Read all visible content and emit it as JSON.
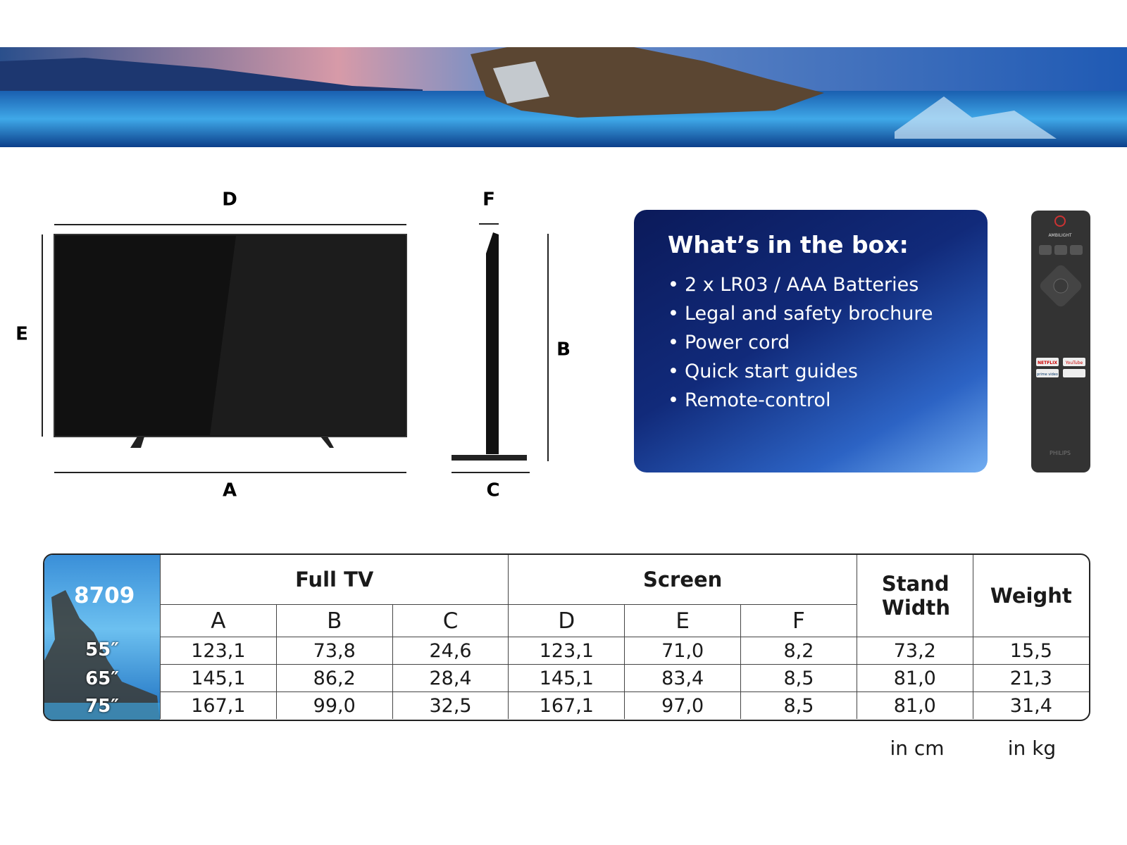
{
  "dimension_labels": {
    "D": "D",
    "F": "F",
    "E": "E",
    "B": "B",
    "A": "A",
    "C": "C"
  },
  "box": {
    "title": "What’s in the box:",
    "items": [
      "2 x LR03 / AAA Batteries",
      "Legal and safety brochure",
      "Power cord",
      "Quick start guides",
      "Remote-control"
    ]
  },
  "remote": {
    "ambilight": "AMBILIGHT",
    "netflix": "NETFLIX",
    "youtube": "YouTube",
    "prime": "prime video",
    "brand": "PHILIPS"
  },
  "table": {
    "model": "8709",
    "groups": [
      "Full TV",
      "Screen",
      "Stand Width",
      "Weight"
    ],
    "subheaders": [
      "A",
      "B",
      "C",
      "D",
      "E",
      "F"
    ],
    "rows": [
      {
        "size": "55″",
        "cells": [
          "123,1",
          "73,8",
          "24,6",
          "123,1",
          "71,0",
          "8,2",
          "73,2",
          "15,5"
        ]
      },
      {
        "size": "65″",
        "cells": [
          "145,1",
          "86,2",
          "28,4",
          "145,1",
          "83,4",
          "8,5",
          "81,0",
          "21,3"
        ]
      },
      {
        "size": "75″",
        "cells": [
          "167,1",
          "99,0",
          "32,5",
          "167,1",
          "97,0",
          "8,5",
          "81,0",
          "31,4"
        ]
      }
    ],
    "units": [
      "in cm",
      "in kg"
    ]
  }
}
